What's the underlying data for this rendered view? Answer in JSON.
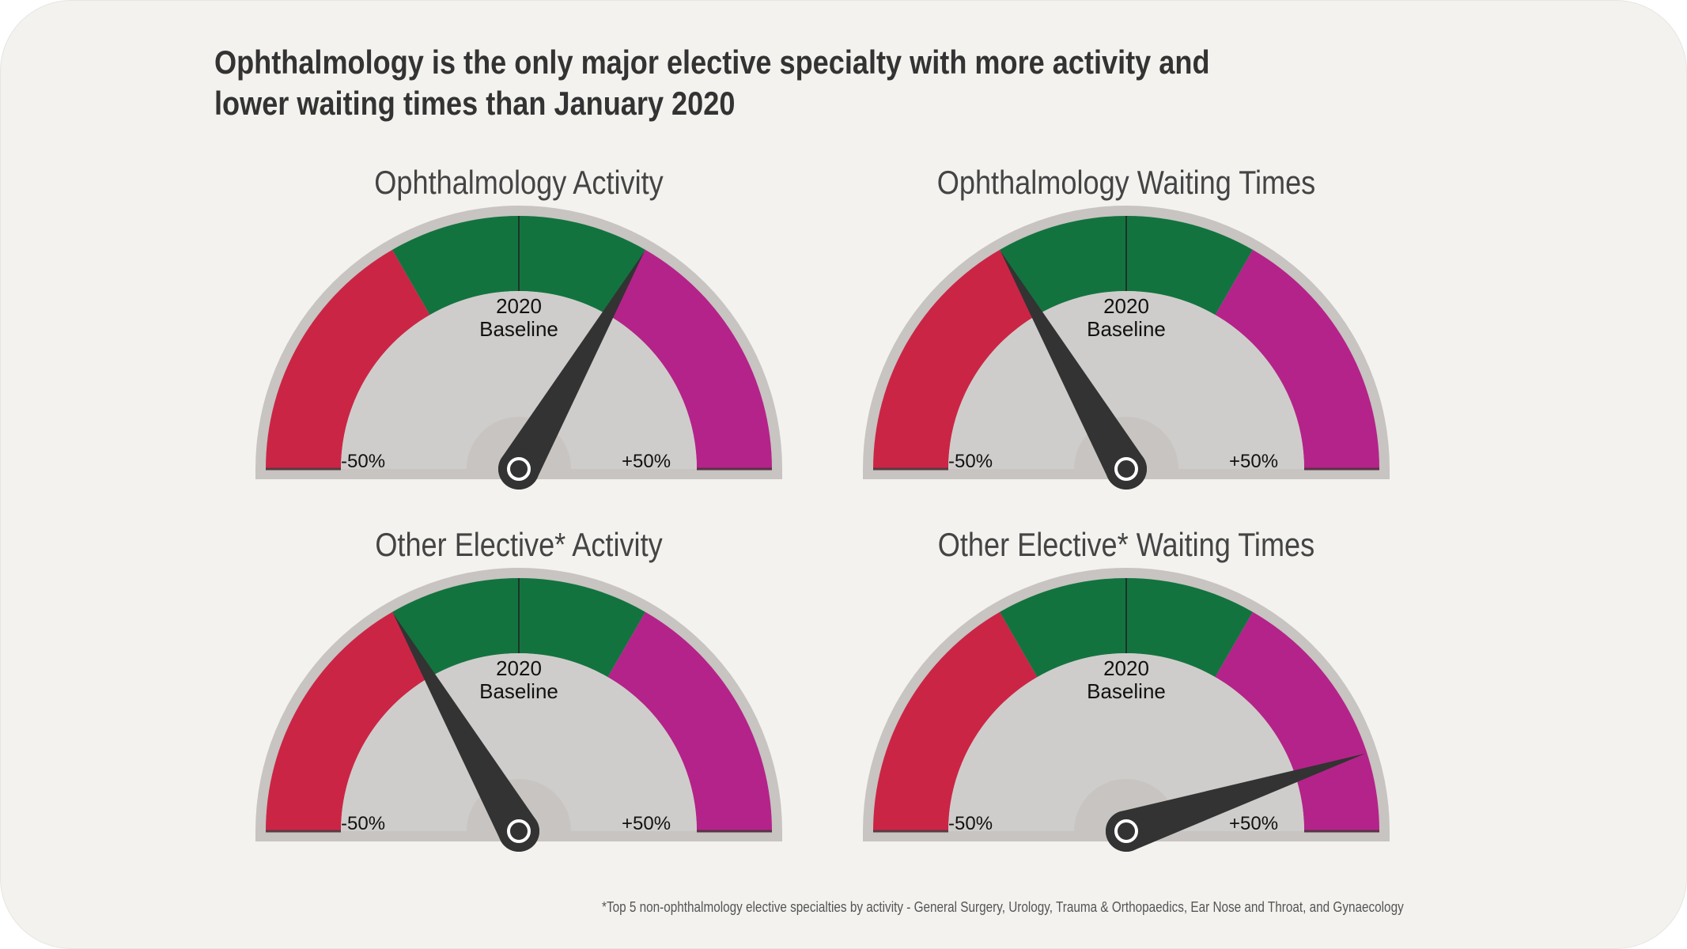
{
  "title": "Ophthalmology is the only major elective specialty with more activity and lower waiting times than January 2020",
  "footnote": "*Top 5 non-ophthalmology elective specialties by activity - General Surgery, Urology, Trauma & Orthopaedics, Ear Nose and Throat, and Gynaecology",
  "baseline_line1": "2020",
  "baseline_line2": "Baseline",
  "tick_min_label": "-50%",
  "tick_max_label": "+50%",
  "colors": {
    "band_low": "#cb2546",
    "band_mid": "#13733f",
    "band_high": "#b42389",
    "inner": "#cfcdcb",
    "rim": "#c7c4c1",
    "needle": "#333333"
  },
  "chart_data": [
    {
      "type": "gauge",
      "title": "Ophthalmology Activity",
      "range": [
        -75,
        75
      ],
      "bands": [
        {
          "from": -75,
          "to": -25,
          "color": "band_low"
        },
        {
          "from": -25,
          "to": 25,
          "color": "band_mid"
        },
        {
          "from": 25,
          "to": 75,
          "color": "band_high"
        }
      ],
      "value": 25
    },
    {
      "type": "gauge",
      "title": "Ophthalmology Waiting Times",
      "range": [
        -75,
        75
      ],
      "bands": [
        {
          "from": -75,
          "to": -25,
          "color": "band_low"
        },
        {
          "from": -25,
          "to": 25,
          "color": "band_mid"
        },
        {
          "from": 25,
          "to": 75,
          "color": "band_high"
        }
      ],
      "value": -25
    },
    {
      "type": "gauge",
      "title": "Other Elective* Activity",
      "range": [
        -75,
        75
      ],
      "bands": [
        {
          "from": -75,
          "to": -25,
          "color": "band_low"
        },
        {
          "from": -25,
          "to": 25,
          "color": "band_mid"
        },
        {
          "from": 25,
          "to": 75,
          "color": "band_high"
        }
      ],
      "value": -25
    },
    {
      "type": "gauge",
      "title": "Other Elective* Waiting Times",
      "range": [
        -75,
        75
      ],
      "bands": [
        {
          "from": -75,
          "to": -25,
          "color": "band_low"
        },
        {
          "from": -25,
          "to": 25,
          "color": "band_mid"
        },
        {
          "from": 25,
          "to": 75,
          "color": "band_high"
        }
      ],
      "value": 60
    }
  ]
}
